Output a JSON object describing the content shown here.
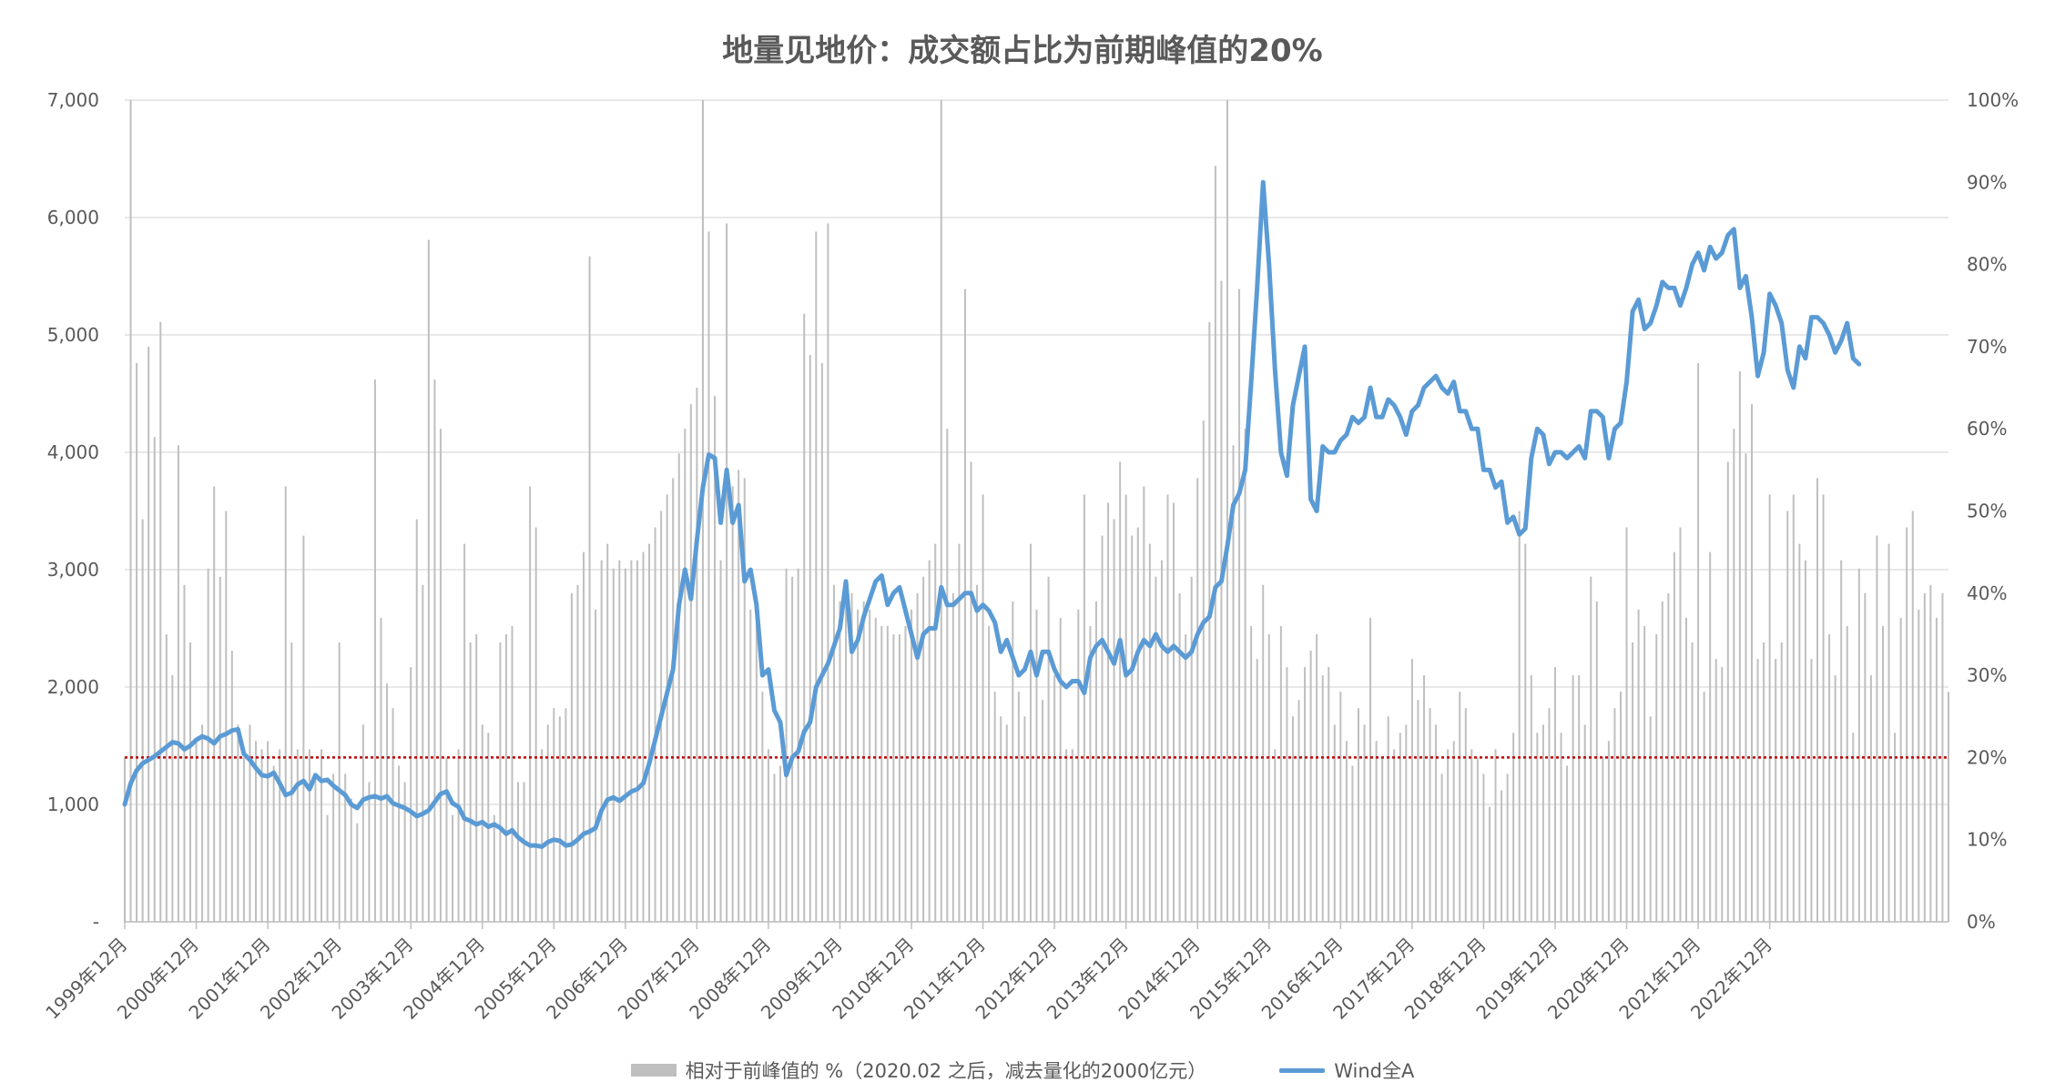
{
  "chart_data": {
    "type": "bar+line",
    "title": "地量见地价：成交额占比为前期峰值的20%",
    "left_axis": {
      "ticks": [
        "-",
        "1,000",
        "2,000",
        "3,000",
        "4,000",
        "5,000",
        "6,000",
        "7,000"
      ],
      "range": [
        0,
        7000
      ]
    },
    "right_axis": {
      "ticks": [
        "0%",
        "10%",
        "20%",
        "30%",
        "40%",
        "50%",
        "60%",
        "70%",
        "80%",
        "90%",
        "100%"
      ],
      "range": [
        0,
        100
      ]
    },
    "x_labels": [
      "1999年12月",
      "2000年12月",
      "2001年12月",
      "2002年12月",
      "2003年12月",
      "2004年12月",
      "2005年12月",
      "2006年12月",
      "2007年12月",
      "2008年12月",
      "2009年12月",
      "2010年12月",
      "2011年12月",
      "2012年12月",
      "2013年12月",
      "2014年12月",
      "2015年12月",
      "2016年12月",
      "2017年12月",
      "2018年12月",
      "2019年12月",
      "2020年12月",
      "2021年12月",
      "2022年12月"
    ],
    "grid": true,
    "reference_line": {
      "value_pct": 20,
      "color": "#c00000",
      "style": "dotted"
    },
    "legend_position": "bottom",
    "series": [
      {
        "name": "相对于前峰值的 %（2020.02 之后，减去量化的2000亿元）",
        "kind": "bar",
        "axis": "right",
        "color": "#bfbfbf",
        "unit": "%",
        "start": "1999-12",
        "step": "month",
        "values": [
          20,
          100,
          68,
          49,
          70,
          59,
          73,
          35,
          30,
          58,
          41,
          34,
          22,
          24,
          43,
          53,
          42,
          50,
          33,
          24,
          20,
          24,
          22,
          21,
          22,
          19,
          21,
          53,
          34,
          21,
          47,
          21,
          18,
          21,
          13,
          18,
          34,
          18,
          15,
          12,
          24,
          17,
          66,
          37,
          29,
          26,
          19,
          17,
          31,
          49,
          41,
          83,
          66,
          60,
          20,
          13,
          21,
          46,
          34,
          35,
          24,
          23,
          13,
          34,
          35,
          36,
          17,
          17,
          53,
          48,
          21,
          24,
          26,
          25,
          26,
          40,
          41,
          45,
          81,
          38,
          44,
          46,
          43,
          44,
          43,
          44,
          44,
          45,
          46,
          48,
          50,
          52,
          54,
          57,
          60,
          63,
          65,
          100,
          84,
          64,
          44,
          85,
          53,
          55,
          54,
          38,
          39,
          28,
          21,
          18,
          19,
          43,
          42,
          43,
          74,
          69,
          84,
          68,
          85,
          41,
          39,
          41,
          40,
          38,
          39,
          38,
          37,
          36,
          36,
          35,
          35,
          36,
          38,
          40,
          42,
          44,
          46,
          100,
          60,
          40,
          46,
          77,
          56,
          41,
          52,
          36,
          28,
          25,
          24,
          39,
          28,
          25,
          46,
          38,
          27,
          42,
          30,
          37,
          21,
          21,
          38,
          52,
          36,
          39,
          47,
          51,
          49,
          56,
          52,
          47,
          48,
          53,
          46,
          42,
          44,
          52,
          51,
          40,
          35,
          42,
          54,
          61,
          73,
          92,
          78,
          100,
          58,
          77,
          60,
          36,
          32,
          41,
          35,
          21,
          36,
          31,
          25,
          27,
          31,
          33,
          35,
          30,
          31,
          24,
          28,
          22,
          19,
          26,
          24,
          37,
          22,
          20,
          25,
          21,
          23,
          24,
          32,
          27,
          30,
          26,
          24,
          18,
          21,
          22,
          28,
          26,
          21,
          20,
          18,
          14,
          21,
          16,
          18,
          23,
          50,
          46,
          30,
          23,
          24,
          26,
          31,
          23,
          19,
          30,
          30,
          24,
          42,
          39,
          20,
          22,
          26,
          28,
          48,
          34,
          38,
          36,
          25,
          35,
          39,
          40,
          45,
          48,
          37,
          34,
          68,
          28,
          45,
          32,
          31,
          56,
          60,
          67,
          57,
          63,
          32,
          34,
          52,
          32,
          34,
          50,
          52,
          46,
          44,
          32,
          54,
          52,
          35,
          30,
          44,
          36,
          23,
          43,
          40,
          30,
          47,
          36,
          46,
          23,
          37,
          48,
          50,
          38,
          40,
          41,
          37,
          40,
          28
        ]
      },
      {
        "name": "Wind全A",
        "kind": "line",
        "axis": "left",
        "color": "#5b9bd5",
        "start": "1999-12",
        "step": "month",
        "values": [
          1000,
          1180,
          1290,
          1350,
          1380,
          1410,
          1450,
          1490,
          1530,
          1520,
          1470,
          1500,
          1550,
          1580,
          1560,
          1520,
          1580,
          1600,
          1630,
          1640,
          1430,
          1380,
          1310,
          1250,
          1240,
          1270,
          1180,
          1080,
          1100,
          1170,
          1200,
          1130,
          1250,
          1200,
          1210,
          1160,
          1120,
          1080,
          1000,
          970,
          1040,
          1060,
          1070,
          1050,
          1070,
          1010,
          990,
          970,
          940,
          900,
          920,
          950,
          1020,
          1090,
          1110,
          1010,
          980,
          880,
          860,
          830,
          850,
          810,
          830,
          800,
          750,
          780,
          720,
          680,
          650,
          650,
          640,
          680,
          700,
          690,
          650,
          660,
          700,
          750,
          770,
          800,
          950,
          1040,
          1060,
          1030,
          1070,
          1110,
          1130,
          1180,
          1350,
          1550,
          1750,
          1950,
          2150,
          2700,
          3000,
          2750,
          3250,
          3700,
          3980,
          3950,
          3400,
          3850,
          3400,
          3550,
          2900,
          3000,
          2700,
          2100,
          2150,
          1800,
          1700,
          1250,
          1400,
          1450,
          1620,
          1700,
          2000,
          2100,
          2200,
          2350,
          2500,
          2900,
          2300,
          2400,
          2600,
          2750,
          2900,
          2950,
          2700,
          2800,
          2850,
          2650,
          2450,
          2250,
          2450,
          2500,
          2500,
          2850,
          2700,
          2700,
          2750,
          2800,
          2800,
          2650,
          2700,
          2650,
          2550,
          2300,
          2400,
          2250,
          2100,
          2150,
          2300,
          2100,
          2300,
          2300,
          2150,
          2050,
          2000,
          2050,
          2050,
          1950,
          2250,
          2350,
          2400,
          2300,
          2200,
          2400,
          2100,
          2150,
          2300,
          2400,
          2350,
          2450,
          2350,
          2300,
          2350,
          2300,
          2250,
          2300,
          2450,
          2550,
          2600,
          2850,
          2900,
          3200,
          3550,
          3650,
          3850,
          4600,
          5400,
          6300,
          5600,
          4700,
          4000,
          3800,
          4400,
          4650,
          4900,
          3600,
          3500,
          4050,
          4000,
          4000,
          4100,
          4150,
          4300,
          4250,
          4300,
          4550,
          4300,
          4300,
          4450,
          4400,
          4300,
          4150,
          4350,
          4400,
          4550,
          4600,
          4650,
          4550,
          4500,
          4600,
          4350,
          4350,
          4200,
          4200,
          3850,
          3850,
          3700,
          3750,
          3400,
          3450,
          3300,
          3350,
          3950,
          4200,
          4150,
          3900,
          4000,
          4000,
          3950,
          4000,
          4050,
          3950,
          4350,
          4350,
          4300,
          3950,
          4200,
          4250,
          4600,
          5200,
          5300,
          5050,
          5100,
          5250,
          5450,
          5400,
          5400,
          5250,
          5400,
          5600,
          5700,
          5550,
          5750,
          5650,
          5700,
          5850,
          5900,
          5400,
          5500,
          5150,
          4650,
          4850,
          5350,
          5250,
          5100,
          4700,
          4550,
          4900,
          4800,
          5150,
          5150,
          5100,
          5000,
          4850,
          4950,
          5100,
          4800,
          4750
        ]
      }
    ]
  }
}
